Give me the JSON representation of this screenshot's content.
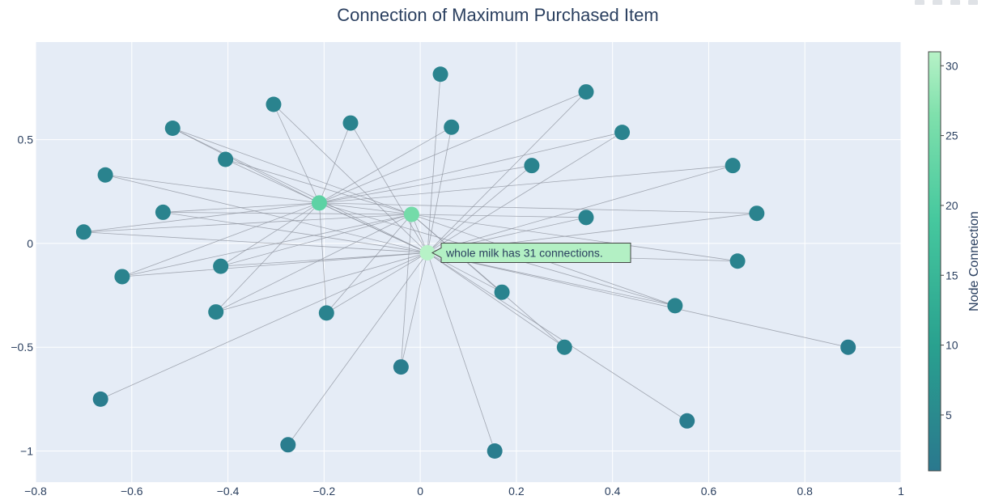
{
  "chart_data": {
    "type": "network",
    "title": "Connection of Maximum Purchased Item",
    "xlim": [
      -0.8,
      1.0
    ],
    "ylim": [
      -1.15,
      0.97
    ],
    "x_ticks": [
      -0.8,
      -0.6,
      -0.4,
      -0.2,
      0,
      0.2,
      0.4,
      0.6,
      0.8,
      1
    ],
    "x_tick_labels": [
      "−0.8",
      "−0.6",
      "−0.4",
      "−0.2",
      "0",
      "0.2",
      "0.4",
      "0.6",
      "0.8",
      "1"
    ],
    "y_ticks": [
      0.5,
      0,
      -0.5,
      -1
    ],
    "y_tick_labels": [
      "0.5",
      "0",
      "−0.5",
      "−1"
    ],
    "colorbar": {
      "title": "Node Connection",
      "range": [
        1,
        31
      ],
      "ticks": [
        5,
        10,
        15,
        20,
        25,
        30
      ],
      "tick_labels": [
        "5",
        "10",
        "15",
        "20",
        "25",
        "30"
      ],
      "colors": [
        "#2a788e",
        "#29a18f",
        "#46c89e",
        "#7fe0ac",
        "#b7f2c7"
      ]
    },
    "hubs": [
      {
        "id": "H1",
        "x": 0.015,
        "y": -0.045,
        "connections": 31
      },
      {
        "id": "H2",
        "x": -0.018,
        "y": 0.14,
        "connections": 22
      },
      {
        "id": "H3",
        "x": -0.21,
        "y": 0.195,
        "connections": 19
      }
    ],
    "nodes": [
      {
        "id": "N1",
        "x": 0.042,
        "y": 0.815,
        "connections": 3,
        "links": [
          "H1"
        ]
      },
      {
        "id": "N2",
        "x": 0.345,
        "y": 0.73,
        "connections": 3,
        "links": [
          "H1",
          "H3"
        ]
      },
      {
        "id": "N3",
        "x": -0.305,
        "y": 0.67,
        "connections": 3,
        "links": [
          "H1",
          "H3"
        ]
      },
      {
        "id": "N4",
        "x": 0.065,
        "y": 0.56,
        "connections": 3,
        "links": [
          "H1",
          "H3"
        ]
      },
      {
        "id": "N5",
        "x": -0.145,
        "y": 0.58,
        "connections": 3,
        "links": [
          "H1",
          "H3"
        ]
      },
      {
        "id": "N6",
        "x": -0.515,
        "y": 0.555,
        "connections": 3,
        "links": [
          "H1",
          "H3",
          "H2"
        ]
      },
      {
        "id": "N7",
        "x": 0.42,
        "y": 0.535,
        "connections": 3,
        "links": [
          "H1",
          "H3"
        ]
      },
      {
        "id": "N8",
        "x": -0.405,
        "y": 0.405,
        "connections": 3,
        "links": [
          "H1",
          "H2"
        ]
      },
      {
        "id": "N9",
        "x": 0.232,
        "y": 0.375,
        "connections": 3,
        "links": [
          "H1",
          "H3"
        ]
      },
      {
        "id": "N10",
        "x": 0.65,
        "y": 0.375,
        "connections": 3,
        "links": [
          "H1",
          "H3"
        ]
      },
      {
        "id": "N11",
        "x": -0.655,
        "y": 0.33,
        "connections": 3,
        "links": [
          "H1",
          "H3"
        ]
      },
      {
        "id": "N12",
        "x": -0.535,
        "y": 0.15,
        "connections": 3,
        "links": [
          "H1",
          "H2",
          "H3"
        ]
      },
      {
        "id": "N13",
        "x": 0.345,
        "y": 0.125,
        "connections": 3,
        "links": [
          "H1",
          "H2"
        ]
      },
      {
        "id": "N14",
        "x": 0.7,
        "y": 0.145,
        "connections": 3,
        "links": [
          "H1",
          "H3"
        ]
      },
      {
        "id": "N15",
        "x": -0.7,
        "y": 0.055,
        "connections": 3,
        "links": [
          "H1",
          "H2",
          "H3"
        ]
      },
      {
        "id": "N16",
        "x": -0.415,
        "y": -0.11,
        "connections": 3,
        "links": [
          "H1",
          "H2",
          "H3"
        ]
      },
      {
        "id": "N17",
        "x": 0.66,
        "y": -0.085,
        "connections": 3,
        "links": [
          "H1",
          "H2"
        ]
      },
      {
        "id": "N18",
        "x": -0.62,
        "y": -0.16,
        "connections": 3,
        "links": [
          "H1",
          "H2",
          "H3"
        ]
      },
      {
        "id": "N19",
        "x": 0.17,
        "y": -0.235,
        "connections": 3,
        "links": [
          "H1",
          "H2"
        ]
      },
      {
        "id": "N20",
        "x": -0.425,
        "y": -0.33,
        "connections": 3,
        "links": [
          "H1",
          "H2",
          "H3"
        ]
      },
      {
        "id": "N21",
        "x": -0.195,
        "y": -0.335,
        "connections": 3,
        "links": [
          "H1",
          "H2",
          "H3"
        ]
      },
      {
        "id": "N22",
        "x": 0.53,
        "y": -0.3,
        "connections": 3,
        "links": [
          "H1",
          "H2",
          "H3"
        ]
      },
      {
        "id": "N23",
        "x": 0.3,
        "y": -0.5,
        "connections": 3,
        "links": [
          "H1",
          "H2"
        ]
      },
      {
        "id": "N24",
        "x": 0.89,
        "y": -0.5,
        "connections": 2,
        "links": [
          "H1"
        ]
      },
      {
        "id": "N25",
        "x": -0.04,
        "y": -0.595,
        "connections": 2,
        "links": [
          "H1",
          "H2"
        ]
      },
      {
        "id": "N26",
        "x": -0.665,
        "y": -0.75,
        "connections": 2,
        "links": [
          "H1"
        ]
      },
      {
        "id": "N27",
        "x": 0.555,
        "y": -0.855,
        "connections": 2,
        "links": [
          "H1"
        ]
      },
      {
        "id": "N28",
        "x": -0.275,
        "y": -0.97,
        "connections": 2,
        "links": [
          "H1"
        ]
      },
      {
        "id": "N29",
        "x": 0.155,
        "y": -1.0,
        "connections": 2,
        "links": [
          "H1"
        ]
      }
    ],
    "extra_links": [
      [
        "H2",
        "H3"
      ],
      [
        "H1",
        "H3"
      ],
      [
        "H1",
        "H2"
      ]
    ],
    "hover": {
      "node": "H1",
      "text": "whole milk has 31 connections."
    }
  }
}
